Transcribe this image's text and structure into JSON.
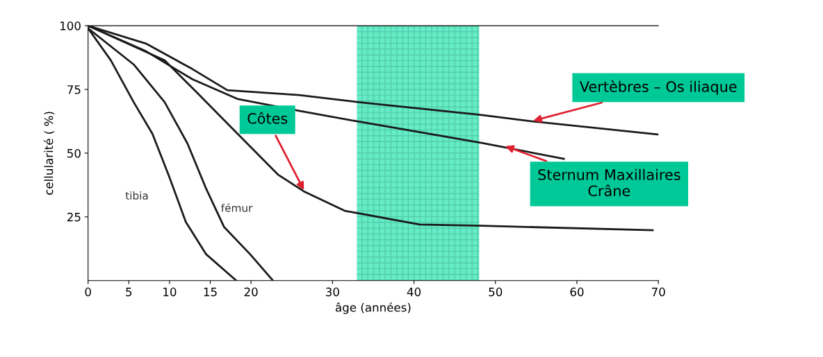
{
  "chart_data": {
    "type": "line",
    "xlabel": "âge (années)",
    "ylabel": "cellularité ( %)",
    "xlim": [
      0,
      70
    ],
    "ylim": [
      0,
      100
    ],
    "xticks": [
      0,
      5,
      10,
      15,
      20,
      30,
      40,
      50,
      60,
      70
    ],
    "yticks": [
      25,
      50,
      75,
      100
    ],
    "grid": false,
    "legend": false,
    "marker": "none",
    "line_style": "solid",
    "series": [
      {
        "name": "tibia",
        "color": "#1a1a1a",
        "x": [
          0,
          2.8,
          5.6,
          7.9,
          9.9,
          12,
          14.5,
          18.2
        ],
        "values": [
          99,
          86.4,
          70,
          57.6,
          41.3,
          23,
          10.3,
          0
        ]
      },
      {
        "name": "fémur",
        "color": "#1a1a1a",
        "x": [
          0,
          5.6,
          9.4,
          12.2,
          14.5,
          16.7,
          19.9,
          22.7
        ],
        "values": [
          99,
          84.8,
          70,
          53.8,
          36,
          21,
          10.3,
          0
        ]
      },
      {
        "color": "#1a1a1a",
        "x": [
          0,
          9.4,
          13.3,
          17.3,
          23.3,
          26.6,
          31.5,
          40.7,
          48.3,
          69.3
        ],
        "values": [
          100,
          86.4,
          74,
          61,
          41.6,
          34.8,
          27.4,
          22,
          21.5,
          19.8
        ]
      },
      {
        "color": "#1a1a1a",
        "x": [
          0,
          7.1,
          12.8,
          18.4,
          25.9,
          33,
          48.3,
          58.4
        ],
        "values": [
          100,
          90,
          79,
          71.2,
          66.6,
          62.5,
          54,
          47.8
        ]
      },
      {
        "color": "#1a1a1a",
        "x": [
          0,
          7.1,
          12.8,
          17.1,
          25.9,
          33,
          48.3,
          54.4,
          70
        ],
        "values": [
          100,
          93,
          83,
          74.7,
          72.8,
          70.1,
          65,
          62.5,
          57.3
        ]
      }
    ],
    "bands": [
      {
        "axis": "x",
        "from": 33,
        "to": 48,
        "color": "#3ee8b8"
      }
    ],
    "annotations": [
      {
        "text": "Côtes",
        "x": 26.6,
        "y": 34.8
      },
      {
        "text": "Vertèbres – Os iliaque",
        "x": 54.4,
        "y": 62.5
      },
      {
        "text": "Sternum Maxillaires\nCrâne",
        "x": 51,
        "y": 53
      }
    ]
  }
}
